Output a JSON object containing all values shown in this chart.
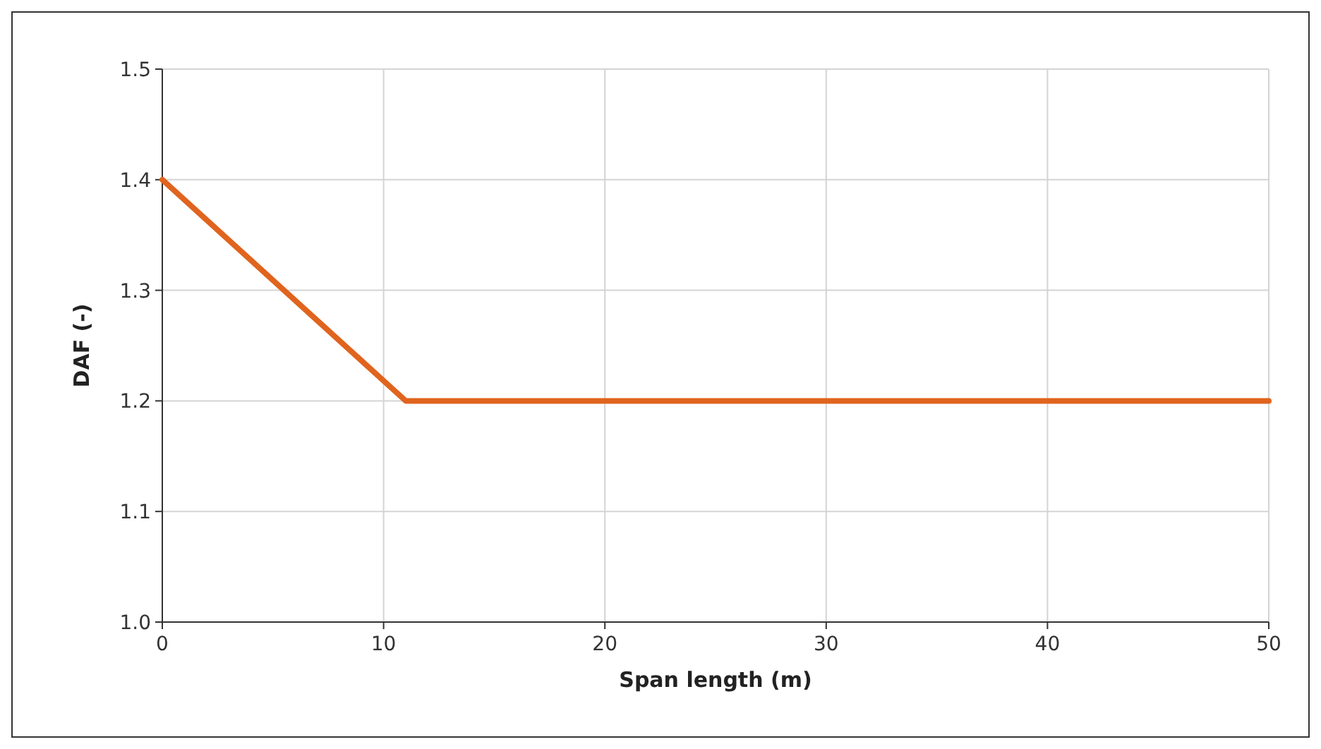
{
  "chart_data": {
    "type": "line",
    "xlabel": "Span length (m)",
    "ylabel": "DAF (-)",
    "x": [
      0,
      11,
      50
    ],
    "series": [
      {
        "color": "#e0641e",
        "values": [
          1.4,
          1.2,
          1.2
        ]
      }
    ],
    "xlim": [
      0,
      50
    ],
    "xticks": [
      0,
      10,
      20,
      30,
      40,
      50
    ],
    "ylim": [
      1.0,
      1.5
    ],
    "yticks": [
      {
        "value": 1.0,
        "label": "1.0"
      },
      {
        "value": 1.1,
        "label": "1.1"
      },
      {
        "value": 1.2,
        "label": "1.2"
      },
      {
        "value": 1.3,
        "label": "1.3"
      },
      {
        "value": 1.4,
        "label": "1.4"
      },
      {
        "value": 1.5,
        "label": "1.5"
      }
    ],
    "grid": true,
    "marker": "none",
    "line_style": "solid"
  }
}
